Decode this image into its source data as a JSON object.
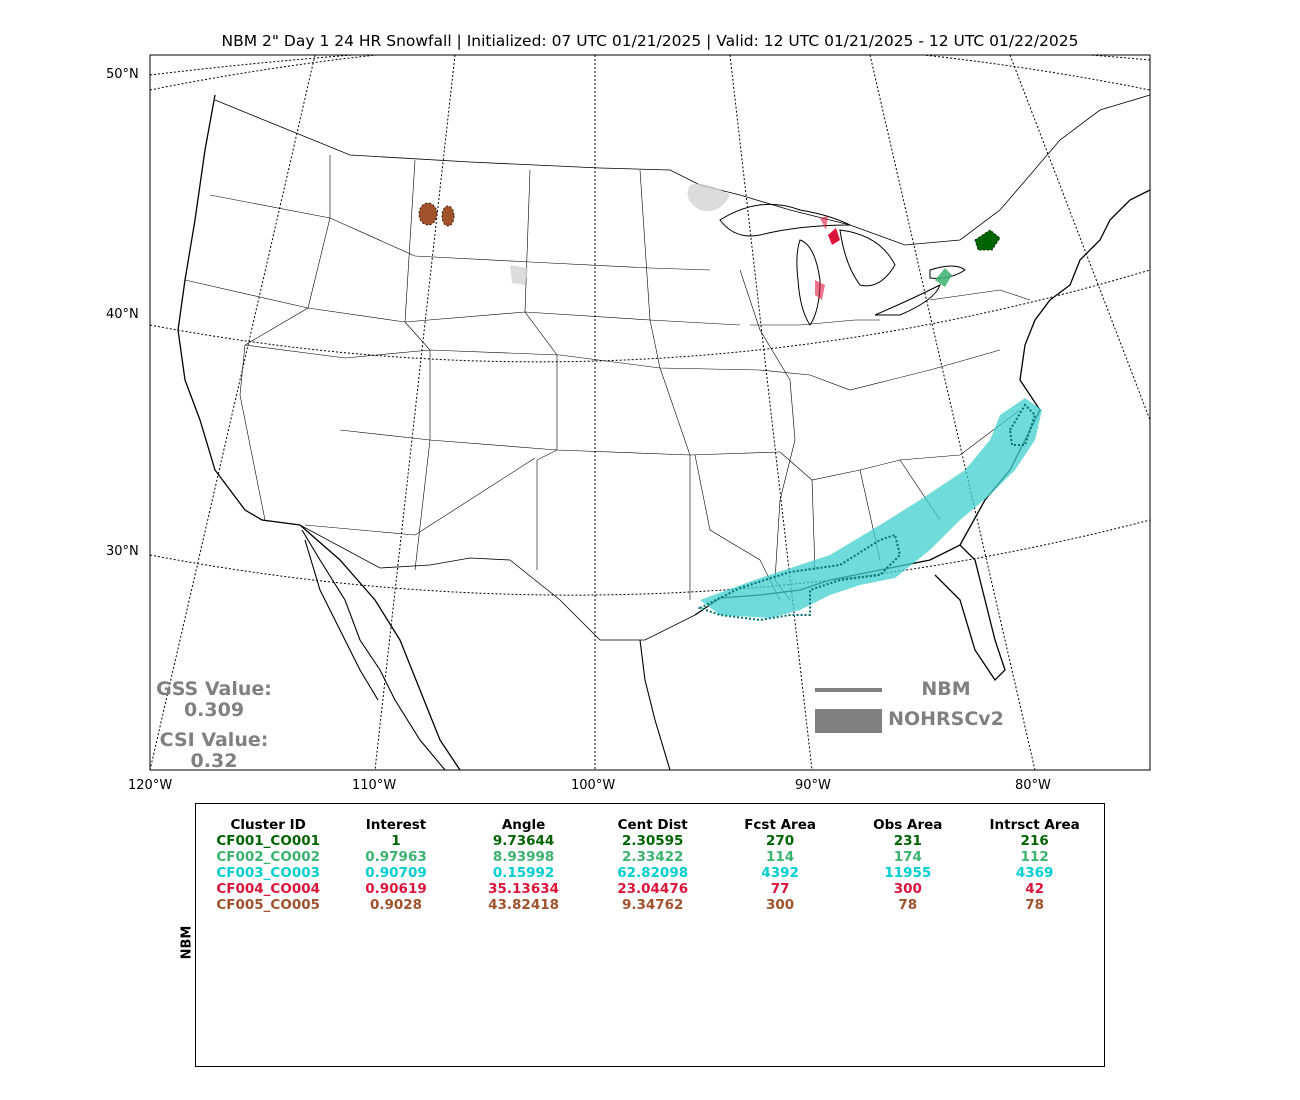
{
  "title": "NBM 2\" Day 1 24 HR Snowfall | Initialized: 07 UTC 01/21/2025 | Valid: 12 UTC 01/21/2025 - 12 UTC 01/22/2025",
  "lat_labels": [
    "50°N",
    "40°N",
    "30°N"
  ],
  "lon_labels": [
    "120°W",
    "110°W",
    "100°W",
    "90°W",
    "80°W"
  ],
  "legend": {
    "nbm": "NBM",
    "obs": "NOHRSCv2",
    "nbm_color": "#808080",
    "obs_color": "#808080"
  },
  "stats": {
    "gss_label": "GSS Value:",
    "gss_value": "0.309",
    "csi_label": "CSI Value:",
    "csi_value": "0.32"
  },
  "table": {
    "side_label": "NBM",
    "headers": [
      "Cluster ID",
      "Interest",
      "Angle",
      "Cent Dist",
      "Fcst Area",
      "Obs Area",
      "Intrsct Area"
    ],
    "rows": [
      {
        "color": "#006400",
        "cells": [
          "CF001_CO001",
          "1",
          "9.73644",
          "2.30595",
          "270",
          "231",
          "216"
        ]
      },
      {
        "color": "#3cb371",
        "cells": [
          "CF002_CO002",
          "0.97963",
          "8.93998",
          "2.33422",
          "114",
          "174",
          "112"
        ]
      },
      {
        "color": "#00ced1",
        "cells": [
          "CF003_CO003",
          "0.90709",
          "0.15992",
          "62.82098",
          "4392",
          "11955",
          "4369"
        ]
      },
      {
        "color": "#dc143c",
        "cells": [
          "CF004_CO004",
          "0.90619",
          "35.13634",
          "23.04476",
          "77",
          "300",
          "42"
        ]
      },
      {
        "color": "#a0522d",
        "cells": [
          "CF005_CO005",
          "0.9028",
          "43.82418",
          "9.34762",
          "300",
          "78",
          "78"
        ]
      }
    ]
  }
}
